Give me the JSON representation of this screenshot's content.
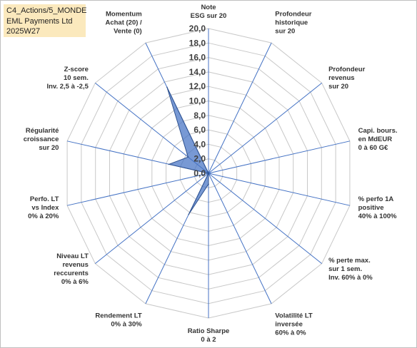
{
  "header": {
    "line1": "C4_Actions/5_MONDE",
    "line2": "EML Payments Ltd",
    "line3": "2025W27"
  },
  "colors": {
    "fill": "#4472c4",
    "grid": "#c8c8c8",
    "spoke": "#4472c4",
    "header_bg": "#fbe9bd"
  },
  "chart_data": {
    "type": "radar",
    "title": "",
    "rlim": [
      0,
      20
    ],
    "tick_step": 2,
    "tick_labels": [
      "0,0",
      "2,0",
      "4,0",
      "6,0",
      "8,0",
      "10,0",
      "12,0",
      "14,0",
      "16,0",
      "18,0",
      "20,0"
    ],
    "axes": [
      [
        "Note",
        "ESG sur 20"
      ],
      [
        "Profondeur",
        "historique",
        "sur 20"
      ],
      [
        "Profondeur",
        "revenus",
        "sur 20"
      ],
      [
        "Capi. bours.",
        "en MdEUR",
        "0 à 60 G€"
      ],
      [
        "% perfo 1A",
        "positive",
        "40% à 100%"
      ],
      [
        "% perte max.",
        "sur 1 sem.",
        "Inv. 60% à 0%"
      ],
      [
        "Volatilité LT",
        "inversée",
        "60% à 0%"
      ],
      [
        "Ratio Sharpe",
        "0 à 2"
      ],
      [
        "Rendement LT",
        "0% à 30%"
      ],
      [
        "Niveau LT",
        "revenus",
        "reccurents",
        "0% à 6%"
      ],
      [
        "Perfo. LT",
        "vs Index",
        "0% à 20%"
      ],
      [
        "Régularité",
        "croissance",
        "sur 20"
      ],
      [
        "Z-score",
        "10 sem.",
        "Inv. 2,5 à -2,5"
      ],
      [
        "Momentum",
        "Achat (20) /",
        "Vente (0)"
      ]
    ],
    "series": [
      {
        "values": [
          0,
          0,
          0,
          0,
          0,
          0,
          0,
          1.5,
          6.3,
          0,
          0,
          5.6,
          3.6,
          13.2
        ]
      }
    ]
  }
}
